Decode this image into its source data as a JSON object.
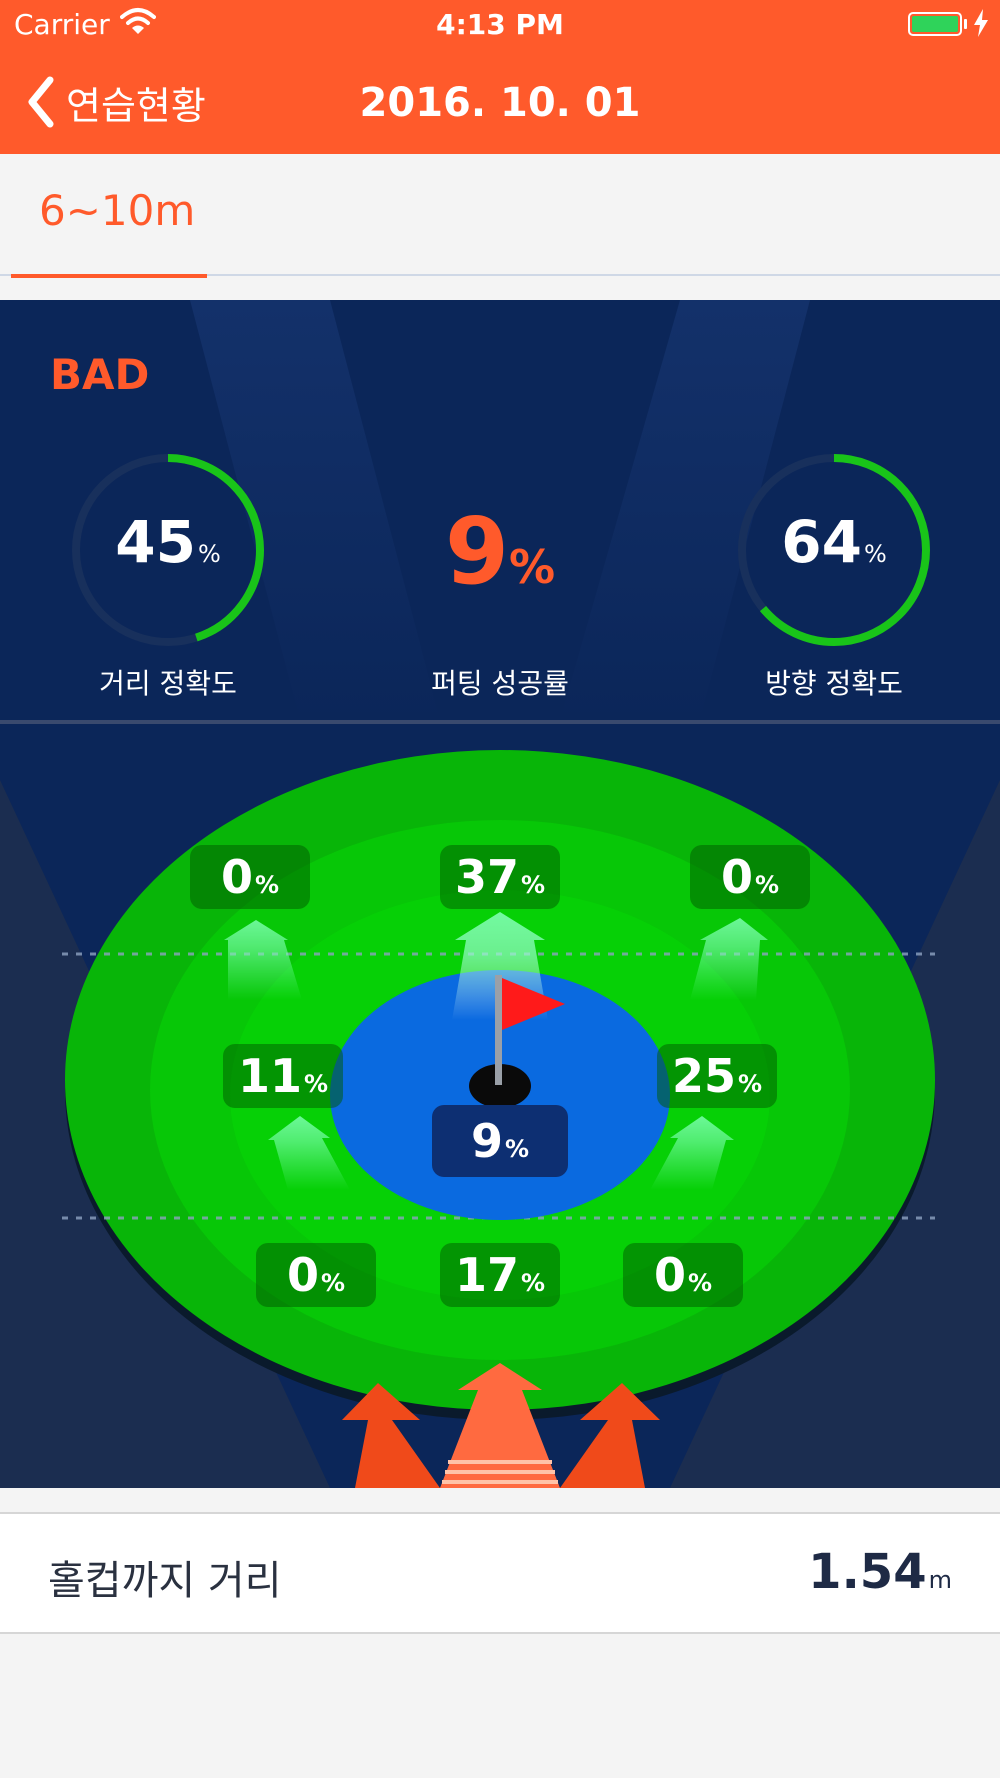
{
  "status_bar": {
    "carrier": "Carrier",
    "time": "4:13 PM",
    "icons": [
      "wifi-icon",
      "battery-icon",
      "charging-bolt-icon"
    ]
  },
  "nav": {
    "back_label": "연습현황",
    "title": "2016. 10. 01"
  },
  "tabs": [
    {
      "label": "6~10m",
      "selected": true
    }
  ],
  "summary": {
    "grade": "BAD",
    "distance_accuracy": {
      "value": "45",
      "unit": "%",
      "label": "거리 정확도",
      "fraction": 0.45
    },
    "putting_success": {
      "value": "9",
      "unit": "%",
      "label": "퍼팅 성공률"
    },
    "direction_accuracy": {
      "value": "64",
      "unit": "%",
      "label": "방향 정확도",
      "fraction": 0.64
    }
  },
  "green": {
    "zones": {
      "long_left": {
        "value": "0",
        "unit": "%"
      },
      "long_center": {
        "value": "37",
        "unit": "%"
      },
      "long_right": {
        "value": "0",
        "unit": "%"
      },
      "mid_left": {
        "value": "11",
        "unit": "%"
      },
      "hole": {
        "value": "9",
        "unit": "%"
      },
      "mid_right": {
        "value": "25",
        "unit": "%"
      },
      "short_left": {
        "value": "0",
        "unit": "%"
      },
      "short_center": {
        "value": "17",
        "unit": "%"
      },
      "short_right": {
        "value": "0",
        "unit": "%"
      }
    }
  },
  "distance_to_cup": {
    "label": "홀컵까지 거리",
    "value": "1.54",
    "unit": "m"
  },
  "colors": {
    "accent": "#ff5a2b",
    "panel_bg": "#0b2659",
    "gauge_arc": "#19c419",
    "green_surface": "#08b508",
    "hole_zone": "#0a6ae0",
    "flag": "#ff1a1a"
  }
}
